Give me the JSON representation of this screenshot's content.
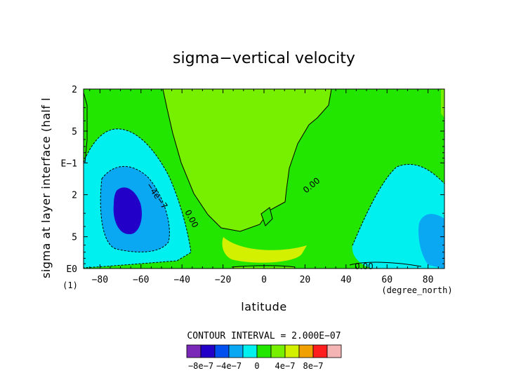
{
  "chart_data": {
    "type": "contour",
    "title": "sigma−vertical velocity",
    "xlabel": "latitude",
    "ylabel": "sigma at layer interface (half l",
    "x_unit_label": "(degree_north)",
    "y_corner_label": "(1)",
    "xlim": [
      -88,
      88
    ],
    "x_ticks": [
      -80,
      -60,
      -40,
      -20,
      0,
      20,
      40,
      60,
      80
    ],
    "x_tick_labels": [
      "−80",
      "−60",
      "−40",
      "−20",
      "0",
      "20",
      "40",
      "60",
      "80"
    ],
    "y_scale": "log",
    "ylim": [
      1.0,
      0.02
    ],
    "y_tick_labels": [
      "2",
      "5",
      "E−1",
      "2",
      "5",
      "E0"
    ],
    "contour_labels": [
      "0.00",
      "0.00",
      "−4e−7",
      "0.00"
    ],
    "contour_interval_text": "CONTOUR INTERVAL = 2.000E−07",
    "colorbar": {
      "levels": [
        -1e-06,
        -8e-07,
        -6e-07,
        -4e-07,
        -2e-07,
        0,
        2e-07,
        4e-07,
        6e-07,
        8e-07,
        1e-06
      ],
      "colors": [
        "#7a28b8",
        "#2300c8",
        "#0050f0",
        "#0aa8f2",
        "#00f0f0",
        "#22e600",
        "#77f000",
        "#d2f000",
        "#f0a000",
        "#ff1e1e",
        "#f4b4b4"
      ],
      "labels": [
        "−8e−7",
        "−4e−7",
        "0",
        "4e−7",
        "8e−7"
      ]
    }
  }
}
